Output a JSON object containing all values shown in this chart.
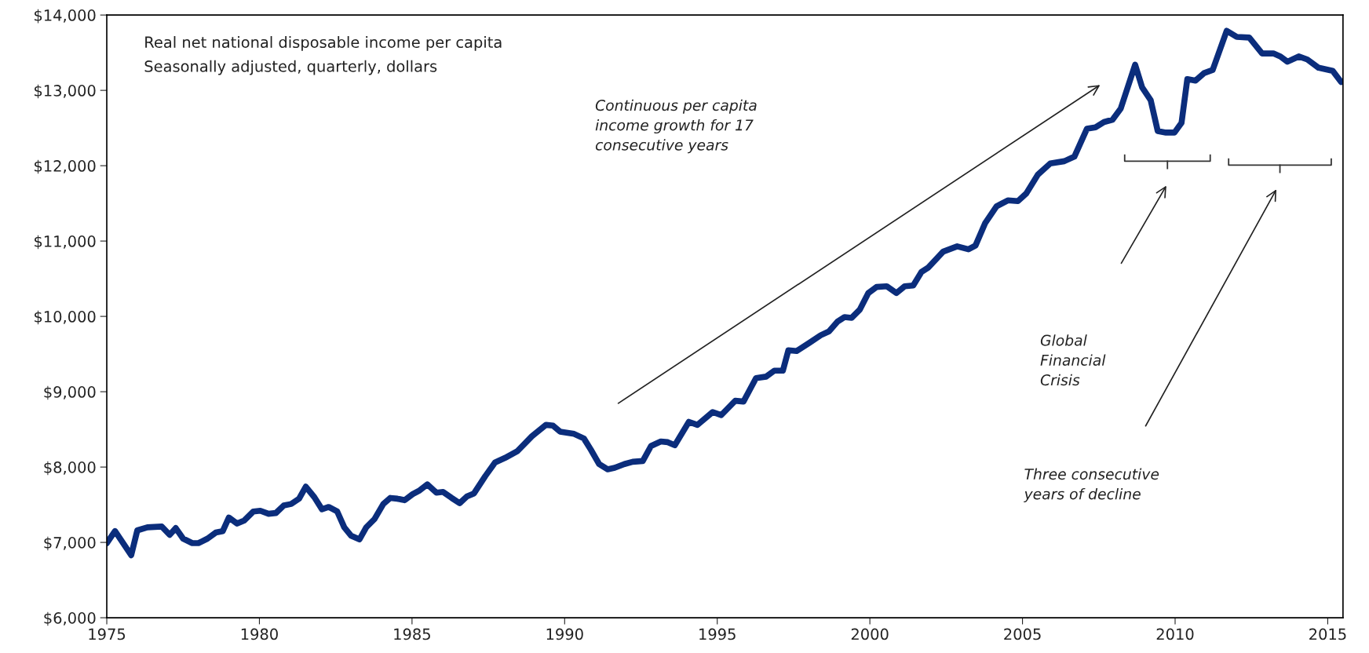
{
  "chart_data": {
    "type": "line",
    "title": "Real net national disposable income per capita",
    "subtitle": "Seasonally adjusted, quarterly, dollars",
    "series": [
      {
        "color": "#0b2d7c",
        "x": [
          1975.0,
          1975.27,
          1975.8,
          1976.0,
          1976.33,
          1976.8,
          1977.06,
          1977.26,
          1977.5,
          1977.8,
          1978.0,
          1978.3,
          1978.57,
          1978.8,
          1979.0,
          1979.27,
          1979.5,
          1979.8,
          1980.03,
          1980.3,
          1980.54,
          1980.8,
          1981.04,
          1981.3,
          1981.52,
          1981.8,
          1982.05,
          1982.27,
          1982.55,
          1982.78,
          1983.0,
          1983.28,
          1983.5,
          1983.77,
          1984.06,
          1984.29,
          1984.52,
          1984.76,
          1985.02,
          1985.25,
          1985.5,
          1985.8,
          1986.02,
          1986.3,
          1986.56,
          1986.8,
          1987.03,
          1987.4,
          1987.72,
          1988.04,
          1988.45,
          1988.93,
          1989.39,
          1989.62,
          1989.85,
          1990.31,
          1990.63,
          1990.86,
          1991.13,
          1991.41,
          1991.64,
          1991.96,
          1992.23,
          1992.56,
          1992.83,
          1993.15,
          1993.38,
          1993.61,
          1994.07,
          1994.35,
          1994.85,
          1995.13,
          1995.59,
          1995.86,
          1996.27,
          1996.6,
          1996.87,
          1997.15,
          1997.33,
          1997.6,
          1998.02,
          1998.39,
          1998.66,
          1998.94,
          1999.17,
          1999.4,
          1999.67,
          1999.95,
          2000.22,
          2000.55,
          2000.87,
          2001.14,
          2001.42,
          2001.69,
          2001.92,
          2002.4,
          2002.86,
          2003.23,
          2003.46,
          2003.78,
          2004.15,
          2004.52,
          2004.85,
          2005.12,
          2005.5,
          2005.91,
          2006.37,
          2006.7,
          2007.11,
          2007.39,
          2007.67,
          2007.95,
          2008.22,
          2008.69,
          2008.92,
          2009.2,
          2009.43,
          2009.7,
          2009.98,
          2010.21,
          2010.4,
          2010.67,
          2010.95,
          2011.23,
          2011.69,
          2012.02,
          2012.43,
          2012.85,
          2013.22,
          2013.45,
          2013.68,
          2014.05,
          2014.33,
          2014.7,
          2015.16,
          2015.44
        ],
        "values": [
          6990,
          7150,
          6830,
          7160,
          7200,
          7210,
          7100,
          7190,
          7050,
          6990,
          6990,
          7050,
          7130,
          7150,
          7330,
          7250,
          7290,
          7410,
          7420,
          7380,
          7390,
          7490,
          7510,
          7580,
          7740,
          7600,
          7440,
          7470,
          7410,
          7200,
          7090,
          7040,
          7200,
          7310,
          7510,
          7590,
          7580,
          7560,
          7640,
          7690,
          7770,
          7660,
          7670,
          7590,
          7520,
          7610,
          7650,
          7880,
          8060,
          8120,
          8210,
          8410,
          8560,
          8550,
          8470,
          8440,
          8380,
          8230,
          8040,
          7970,
          7990,
          8040,
          8070,
          8080,
          8280,
          8340,
          8330,
          8290,
          8600,
          8560,
          8730,
          8690,
          8880,
          8870,
          9180,
          9200,
          9280,
          9280,
          9550,
          9540,
          9650,
          9750,
          9800,
          9930,
          9990,
          9980,
          10090,
          10310,
          10390,
          10400,
          10310,
          10400,
          10410,
          10590,
          10650,
          10860,
          10930,
          10890,
          10940,
          11240,
          11460,
          11540,
          11530,
          11630,
          11880,
          12030,
          12060,
          12120,
          12490,
          12510,
          12580,
          12610,
          12760,
          13340,
          13040,
          12870,
          12460,
          12440,
          12440,
          12570,
          13150,
          13130,
          13230,
          13270,
          13790,
          13710,
          13700,
          13490,
          13490,
          13450,
          13380,
          13450,
          13410,
          13300,
          13260,
          13110
        ]
      }
    ],
    "xlim": [
      1975,
      2015.5
    ],
    "xticks": [
      1975,
      1980,
      1985,
      1990,
      1995,
      2000,
      2005,
      2010,
      2015
    ],
    "ylim": [
      6000,
      14000
    ],
    "yticks": [
      {
        "value": 6000,
        "label": "$6,000"
      },
      {
        "value": 7000,
        "label": "$7,000"
      },
      {
        "value": 8000,
        "label": "$8,000"
      },
      {
        "value": 9000,
        "label": "$9,000"
      },
      {
        "value": 10000,
        "label": "$10,000"
      },
      {
        "value": 11000,
        "label": "$11,000"
      },
      {
        "value": 12000,
        "label": "$12,000"
      },
      {
        "value": 13000,
        "label": "$13,000"
      },
      {
        "value": 14000,
        "label": "$14,000"
      }
    ],
    "grid": false,
    "marker": "none",
    "line_style": "solid",
    "annotations": [
      "Continuous per capita\nincome growth for 17\nconsecutive years",
      "Global\nFinancial\nCrisis",
      "Three consecutive\nyears of decline"
    ]
  }
}
